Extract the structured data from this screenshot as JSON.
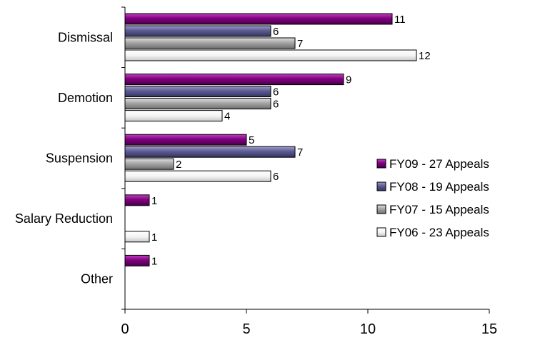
{
  "chart_data": {
    "type": "bar",
    "orientation": "horizontal",
    "title": "",
    "xlabel": "",
    "ylabel": "",
    "categories": [
      "Dismissal",
      "Demotion",
      "Suspension",
      "Salary Reduction",
      "Other"
    ],
    "series": [
      {
        "name": "FY09 - 27 Appeals",
        "color": "#800080",
        "values": [
          11,
          9,
          5,
          1,
          1
        ]
      },
      {
        "name": "FY08 - 19 Appeals",
        "color": "#5c5c94",
        "values": [
          6,
          6,
          7,
          null,
          null
        ]
      },
      {
        "name": "FY07 - 15 Appeals",
        "color": "#a6a6a6",
        "values": [
          7,
          6,
          2,
          null,
          null
        ]
      },
      {
        "name": "FY06 - 23 Appeals",
        "color": "#f2f2f2",
        "values": [
          12,
          4,
          6,
          1,
          null
        ]
      }
    ],
    "xlim": [
      0,
      15
    ],
    "x_ticks": [
      "0",
      "5",
      "10",
      "15"
    ],
    "grid": false,
    "legend_position": "right"
  }
}
